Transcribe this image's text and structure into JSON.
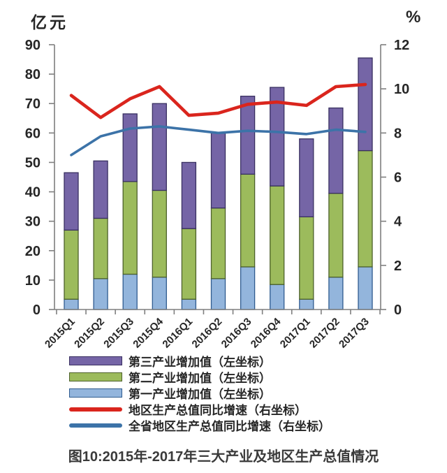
{
  "chart_data": {
    "type": "bar",
    "subtype": "stacked-columns-with-lines",
    "title": "图10:2015年-2017年三大产业及地区生产总值情况",
    "categories": [
      "2015Q1",
      "2015Q2",
      "2015Q3",
      "2015Q4",
      "2016Q1",
      "2016Q2",
      "2016Q3",
      "2016Q4",
      "2017Q1",
      "2017Q2",
      "2017Q3"
    ],
    "series": [
      {
        "name": "第一产业增加值（左坐标）",
        "type": "bar",
        "axis": "left",
        "stacked": true,
        "color": "#93b5dc",
        "border_color": "#2f5b8f",
        "values": [
          3.5,
          10.5,
          12,
          11,
          3.5,
          10.5,
          14.5,
          8.5,
          3.5,
          11,
          14.5
        ]
      },
      {
        "name": "第二产业增加值（左坐标）",
        "type": "bar",
        "axis": "left",
        "stacked": true,
        "color": "#9cbb5c",
        "border_color": "#4d612b",
        "values": [
          23.5,
          20.5,
          31.5,
          29.5,
          24,
          24,
          31.5,
          33.5,
          28,
          28.5,
          39.5
        ]
      },
      {
        "name": "第三产业增加值（左坐标）",
        "type": "bar",
        "axis": "left",
        "stacked": true,
        "color": "#7565a6",
        "border_color": "#393061",
        "values": [
          19.5,
          19.5,
          23,
          29.5,
          22.5,
          25.5,
          26.5,
          33.5,
          26.5,
          29,
          31.5
        ]
      },
      {
        "name": "地区生产总值同比增速（右坐标）",
        "type": "line",
        "axis": "right",
        "color": "#da251d",
        "values": [
          9.7,
          8.7,
          9.55,
          10.1,
          8.8,
          8.9,
          9.3,
          9.4,
          9.25,
          10.1,
          10.2
        ]
      },
      {
        "name": "全省地区生产总值同比增速（右坐标）",
        "type": "line",
        "axis": "right",
        "color": "#3c73a8",
        "values": [
          7.0,
          7.85,
          8.2,
          8.3,
          8.15,
          8.0,
          8.1,
          8.05,
          7.95,
          8.15,
          8.05
        ]
      }
    ],
    "left_axis": {
      "label": "亿元",
      "min": 0,
      "max": 90,
      "step": 10
    },
    "right_axis": {
      "label": "%",
      "min": 0,
      "max": 12,
      "step": 2
    },
    "stack_totals": [
      46.5,
      50.5,
      66.5,
      70,
      50,
      60,
      72.5,
      75.5,
      58,
      68.5,
      85.5
    ],
    "legend_order": [
      2,
      1,
      0,
      3,
      4
    ],
    "legend_position": "bottom-left",
    "grid": false,
    "axis_color": "#7f7f7f"
  }
}
